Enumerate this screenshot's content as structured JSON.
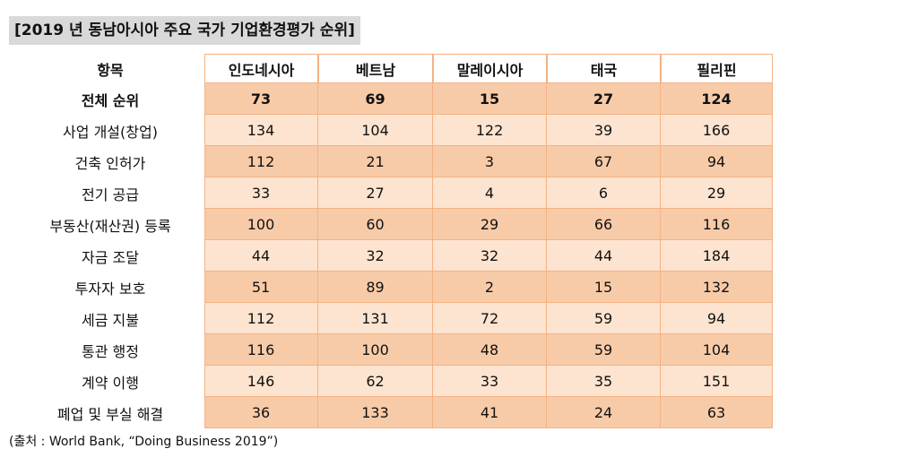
{
  "header": {
    "title": "[2019 년 동남아시아 주요 국가 기업환경평가 순위]"
  },
  "table": {
    "columns": [
      "항목",
      "인도네시아",
      "베트남",
      "말레이시아",
      "태국",
      "필리핀"
    ],
    "rows": [
      [
        "전체 순위",
        73,
        69,
        15,
        27,
        124
      ],
      [
        "사업 개설(창업)",
        134,
        104,
        122,
        39,
        166
      ],
      [
        "건축 인허가",
        112,
        21,
        3,
        67,
        94
      ],
      [
        "전기 공급",
        33,
        27,
        4,
        6,
        29
      ],
      [
        "부동산(재산권) 등록",
        100,
        60,
        29,
        66,
        116
      ],
      [
        "자금 조달",
        44,
        32,
        32,
        44,
        184
      ],
      [
        "투자자 보호",
        51,
        89,
        2,
        15,
        132
      ],
      [
        "세금 지불",
        112,
        131,
        72,
        59,
        94
      ],
      [
        "통관 행정",
        116,
        100,
        48,
        59,
        104
      ],
      [
        "계약 이행",
        146,
        62,
        33,
        35,
        151
      ],
      [
        "폐업 및 부실 해결",
        36,
        133,
        41,
        24,
        63
      ]
    ]
  },
  "footer": {
    "source": "(출처 : World Bank, “Doing Business 2019”)"
  }
}
